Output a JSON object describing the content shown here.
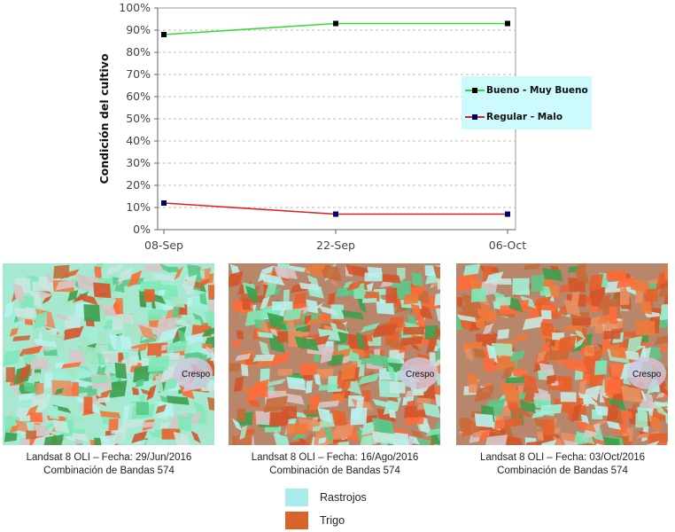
{
  "chart_data": {
    "type": "line",
    "title": "",
    "xlabel": "",
    "ylabel": "Condición del cultivo",
    "categories": [
      "08-Sep",
      "22-Sep",
      "06-Oct"
    ],
    "series": [
      {
        "name": "Bueno - Muy Bueno",
        "values": [
          88,
          93,
          93
        ],
        "color": "#33dd33",
        "marker_color": "#000000"
      },
      {
        "name": "Regular - Malo",
        "values": [
          12,
          7,
          7
        ],
        "color": "#dd2222",
        "marker_color": "#000066"
      }
    ],
    "ylim": [
      0,
      100
    ],
    "yticks": [
      "0%",
      "10%",
      "20%",
      "30%",
      "40%",
      "50%",
      "60%",
      "70%",
      "80%",
      "90%",
      "100%"
    ],
    "grid": true,
    "legend_position": "right",
    "legend_bg": "#ccfafd"
  },
  "images": [
    {
      "place_label": "Crespo",
      "caption_line1": "Landsat 8 OLI – Fecha: 29/Jun/2016",
      "caption_line2": "Combinación de Bandas 574",
      "wheat_share": 0.25
    },
    {
      "place_label": "Crespo",
      "caption_line1": "Landsat 8 OLI – Fecha: 16/Ago/2016",
      "caption_line2": "Combinación de Bandas 574",
      "wheat_share": 0.5
    },
    {
      "place_label": "Crespo",
      "caption_line1": "Landsat 8 OLI – Fecha: 03/Oct/2016",
      "caption_line2": "Combinación de Bandas 574",
      "wheat_share": 0.65
    }
  ],
  "key": [
    {
      "label": "Rastrojos",
      "color": "#a8ecec"
    },
    {
      "label": "Trigo",
      "color": "#d8642c"
    }
  ]
}
